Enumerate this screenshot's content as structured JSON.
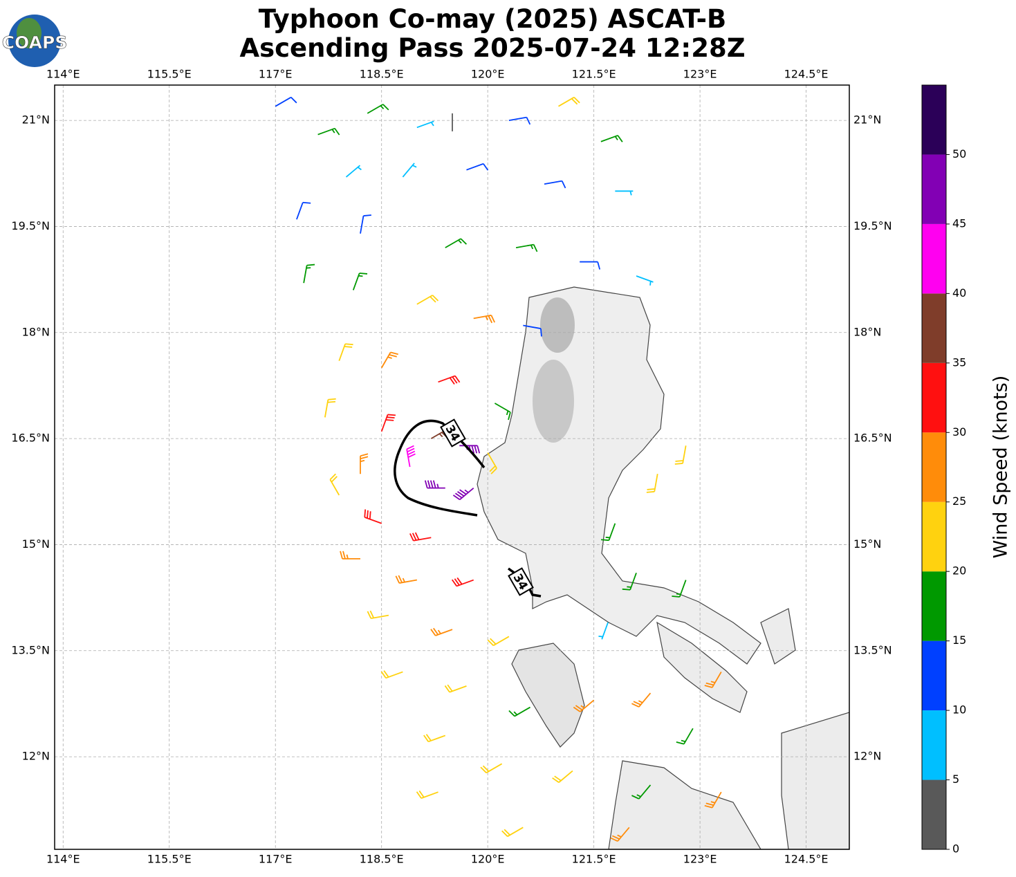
{
  "logo": "COAPS",
  "chart_data": {
    "type": "barbs",
    "title": "Typhoon Co-may (2025) ASCAT-B",
    "subtitle": "Ascending Pass 2025-07-24 12:28Z",
    "xlim": [
      113.88,
      125.11
    ],
    "ylim": [
      10.69,
      21.5
    ],
    "xticks": [
      {
        "value": 114,
        "label": "114°E"
      },
      {
        "value": 115.5,
        "label": "115.5°E"
      },
      {
        "value": 117,
        "label": "117°E"
      },
      {
        "value": 118.5,
        "label": "118.5°E"
      },
      {
        "value": 120,
        "label": "120°E"
      },
      {
        "value": 121.5,
        "label": "121.5°E"
      },
      {
        "value": 123,
        "label": "123°E"
      },
      {
        "value": 124.5,
        "label": "124.5°E"
      }
    ],
    "yticks": [
      {
        "value": 12,
        "label": "12°N"
      },
      {
        "value": 13.5,
        "label": "13.5°N"
      },
      {
        "value": 15,
        "label": "15°N"
      },
      {
        "value": 16.5,
        "label": "16.5°N"
      },
      {
        "value": 18,
        "label": "18°N"
      },
      {
        "value": 19.5,
        "label": "19.5°N"
      },
      {
        "value": 21,
        "label": "21°N"
      }
    ],
    "grid": true,
    "contour_labels": [
      "34",
      "34"
    ],
    "colorbar": {
      "label": "Wind Speed (knots)",
      "bounds": [
        0,
        5,
        10,
        15,
        20,
        25,
        30,
        35,
        40,
        45,
        50,
        55
      ],
      "colors": [
        "#595959",
        "#00bfff",
        "#0040ff",
        "#009900",
        "#ffd20f",
        "#ff8c0a",
        "#ff1010",
        "#7f3d2a",
        "#ff00f0",
        "#8200b4",
        "#2b0058"
      ],
      "ticks": [
        0,
        5,
        10,
        15,
        20,
        25,
        30,
        35,
        40,
        45,
        50
      ]
    },
    "barbs": {
      "lon": [
        117.0,
        117.6,
        118.3,
        119.0,
        119.5,
        120.3,
        121.0,
        121.6,
        118.0,
        118.8,
        119.7,
        120.8,
        121.8,
        117.3,
        118.2,
        119.4,
        120.4,
        121.3,
        122.1,
        117.4,
        118.1,
        119.0,
        119.8,
        120.5,
        117.9,
        118.5,
        119.3,
        120.1,
        117.7,
        118.5,
        119.2,
        119.6,
        120.0,
        118.9,
        119.4,
        119.8,
        118.2,
        117.9,
        118.5,
        119.2,
        118.2,
        119.0,
        119.8,
        118.6,
        119.5,
        120.3,
        118.8,
        119.7,
        120.6,
        121.5,
        122.3,
        122.9,
        119.4,
        120.2,
        121.2,
        122.3,
        123.3,
        119.3,
        120.5,
        122.0,
        121.8,
        122.4,
        122.8,
        122.1,
        122.8,
        121.7,
        123.3
      ],
      "lat": [
        21.2,
        20.8,
        21.1,
        20.9,
        21.1,
        21.0,
        21.2,
        20.7,
        20.2,
        20.2,
        20.3,
        20.1,
        20.0,
        19.6,
        19.4,
        19.2,
        19.2,
        19.0,
        18.8,
        18.7,
        18.6,
        18.4,
        18.2,
        18.1,
        17.6,
        17.5,
        17.3,
        17.0,
        16.8,
        16.6,
        16.5,
        16.4,
        16.3,
        16.1,
        15.8,
        15.8,
        16.0,
        15.7,
        15.3,
        15.1,
        14.8,
        14.5,
        14.5,
        14.0,
        13.8,
        13.7,
        13.2,
        13.0,
        12.7,
        12.8,
        12.9,
        12.4,
        12.3,
        11.9,
        11.8,
        11.6,
        11.5,
        11.5,
        11.0,
        11.0,
        15.3,
        16.0,
        16.4,
        14.6,
        14.5,
        13.9,
        13.2
      ],
      "speed": [
        10,
        15,
        15,
        5,
        3,
        10,
        20,
        15,
        5,
        5,
        10,
        10,
        5,
        10,
        10,
        15,
        15,
        10,
        5,
        15,
        15,
        20,
        25,
        10,
        20,
        25,
        30,
        15,
        20,
        30,
        35,
        45,
        20,
        40,
        45,
        45,
        25,
        20,
        30,
        30,
        25,
        25,
        30,
        20,
        25,
        20,
        20,
        20,
        15,
        25,
        25,
        15,
        20,
        20,
        20,
        15,
        25,
        20,
        20,
        25,
        15,
        20,
        20,
        15,
        15,
        5,
        25
      ],
      "direction": [
        60,
        70,
        60,
        70,
        180,
        80,
        60,
        70,
        50,
        40,
        70,
        80,
        90,
        20,
        10,
        60,
        80,
        90,
        110,
        10,
        20,
        60,
        80,
        100,
        20,
        30,
        70,
        120,
        10,
        20,
        60,
        90,
        150,
        350,
        270,
        230,
        0,
        330,
        290,
        260,
        270,
        260,
        250,
        260,
        250,
        240,
        250,
        250,
        240,
        230,
        220,
        210,
        250,
        240,
        230,
        220,
        210,
        250,
        240,
        220,
        200,
        190,
        190,
        200,
        200,
        200,
        210
      ]
    }
  }
}
